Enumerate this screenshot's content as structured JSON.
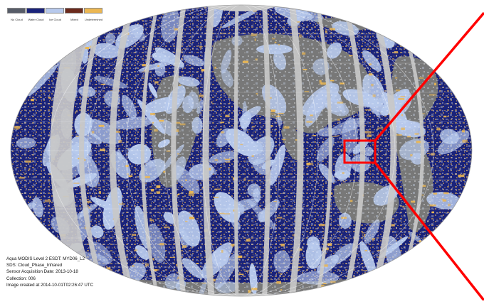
{
  "legend": {
    "items": [
      {
        "label": "No Cloud",
        "color": "#575c68"
      },
      {
        "label": "Water Cloud",
        "color": "#1a237a"
      },
      {
        "label": "Ice Cloud",
        "color": "#b7c9ec"
      },
      {
        "label": "Mixed",
        "color": "#6b2a1c"
      },
      {
        "label": "Undetermined",
        "color": "#ecb752"
      }
    ]
  },
  "metadata": {
    "line1": "Aqua MODIS Level 2 ESDT: MYD06_L2",
    "line2": "SDS: Cloud_Phase_Infrared",
    "line3": "Sensor Acquisition Date: 2013-10-18",
    "line4": "Collection: 006",
    "line5": "Image created at 2014-10-01T02:26:47 UTC"
  },
  "colors": {
    "no_data": "#c8c8c8",
    "land": "#787878",
    "water_cloud": "#1a237a",
    "ice_cloud": "#b7c9ec",
    "undetermined": "#ecb752",
    "highlight": "#ff0000"
  },
  "map": {
    "projection": "Hammer (elliptical world map)",
    "highlight_box": "red rectangle over the Philippine Sea region with zoom lines to the right edge"
  }
}
